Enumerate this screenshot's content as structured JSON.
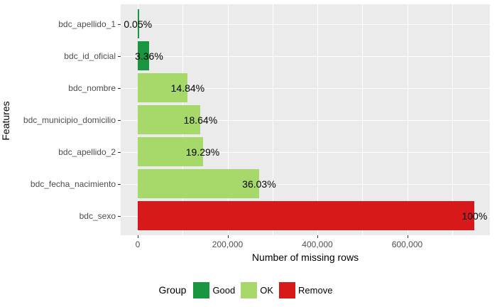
{
  "chart_data": {
    "type": "bar",
    "orientation": "horizontal",
    "title": "",
    "xlabel": "Number of missing rows",
    "ylabel": "Features",
    "categories": [
      "bdc_apellido_1",
      "bdc_id_oficial",
      "bdc_nombre",
      "bdc_municipio_domicilio",
      "bdc_apellido_2",
      "bdc_fecha_nacimiento",
      "bdc_sexo"
    ],
    "values": [
      375,
      25200,
      111300,
      139800,
      144675,
      270225,
      750000
    ],
    "value_labels": [
      "0.05%",
      "3.36%",
      "14.84%",
      "18.64%",
      "19.29%",
      "36.03%",
      "100%"
    ],
    "groups": [
      "Good",
      "Good",
      "OK",
      "OK",
      "OK",
      "OK",
      "Remove"
    ],
    "xlim": [
      0,
      784000
    ],
    "x_ticks": [
      {
        "value": 0,
        "label": "0"
      },
      {
        "value": 200000,
        "label": "200,000"
      },
      {
        "value": 400000,
        "label": "400,000"
      },
      {
        "value": 600000,
        "label": "600,000"
      }
    ],
    "x_minor_gridline_step": 100000,
    "grid": true,
    "panel_background": "#ebebeb",
    "gridline_color": "#ffffff",
    "legend": {
      "title": "Group",
      "position": "bottom",
      "entries": [
        {
          "label": "Good",
          "color": "#1a9641"
        },
        {
          "label": "OK",
          "color": "#a6d96a"
        },
        {
          "label": "Remove",
          "color": "#d7191c"
        }
      ]
    }
  }
}
